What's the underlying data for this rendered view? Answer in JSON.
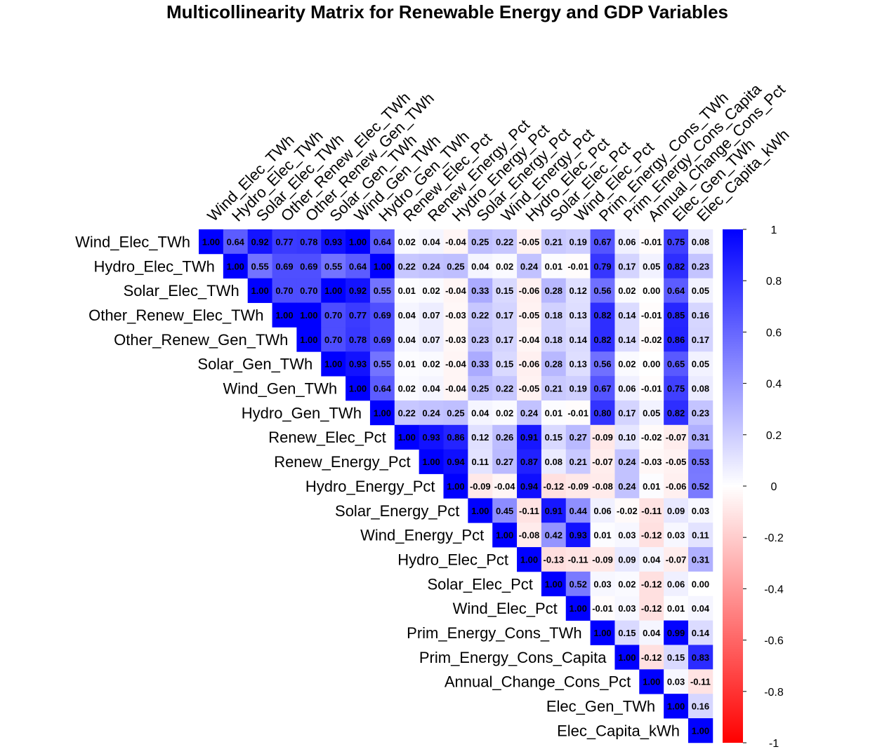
{
  "chart_data": {
    "type": "heatmap",
    "title": "Multicollinearity Matrix for Renewable Energy and GDP Variables",
    "layout": "upper-triangle",
    "variables": [
      "Wind_Elec_TWh",
      "Hydro_Elec_TWh",
      "Solar_Elec_TWh",
      "Other_Renew_Elec_TWh",
      "Other_Renew_Gen_TWh",
      "Solar_Gen_TWh",
      "Wind_Gen_TWh",
      "Hydro_Gen_TWh",
      "Renew_Elec_Pct",
      "Renew_Energy_Pct",
      "Hydro_Energy_Pct",
      "Solar_Energy_Pct",
      "Wind_Energy_Pct",
      "Hydro_Elec_Pct",
      "Solar_Elec_Pct",
      "Wind_Elec_Pct",
      "Prim_Energy_Cons_TWh",
      "Prim_Energy_Cons_Capita",
      "Annual_Change_Cons_Pct",
      "Elec_Gen_TWh",
      "Elec_Capita_kWh"
    ],
    "value_labels": [
      [
        "1.00",
        "0.64",
        "0.92",
        "0.77",
        "0.78",
        "0.93",
        "1.00",
        "0.64",
        "0.02",
        "0.04",
        "-0.04",
        "0.25",
        "0.22",
        "-0.05",
        "0.21",
        "0.19",
        "0.67",
        "0.06",
        "-0.01",
        "0.75",
        "0.08"
      ],
      [
        "1.00",
        "0.55",
        "0.69",
        "0.69",
        "0.55",
        "0.64",
        "1.00",
        "0.22",
        "0.24",
        "0.25",
        "0.04",
        "0.02",
        "0.24",
        "0.01",
        "-0.01",
        "0.79",
        "0.17",
        "0.05",
        "0.82",
        "0.23"
      ],
      [
        "1.00",
        "0.70",
        "0.70",
        "1.00",
        "0.92",
        "0.55",
        "0.01",
        "0.02",
        "-0.04",
        "0.33",
        "0.15",
        "-0.06",
        "0.28",
        "0.12",
        "0.56",
        "0.02",
        "0.00",
        "0.64",
        "0.05"
      ],
      [
        "1.00",
        "1.00",
        "0.70",
        "0.77",
        "0.69",
        "0.04",
        "0.07",
        "-0.03",
        "0.22",
        "0.17",
        "-0.05",
        "0.18",
        "0.13",
        "0.82",
        "0.14",
        "-0.01",
        "0.85",
        "0.16"
      ],
      [
        "1.00",
        "0.70",
        "0.78",
        "0.69",
        "0.04",
        "0.07",
        "-0.03",
        "0.23",
        "0.17",
        "-0.04",
        "0.18",
        "0.14",
        "0.82",
        "0.14",
        "-0.02",
        "0.86",
        "0.17"
      ],
      [
        "1.00",
        "0.93",
        "0.55",
        "0.01",
        "0.02",
        "-0.04",
        "0.33",
        "0.15",
        "-0.06",
        "0.28",
        "0.13",
        "0.56",
        "0.02",
        "0.00",
        "0.65",
        "0.05"
      ],
      [
        "1.00",
        "0.64",
        "0.02",
        "0.04",
        "-0.04",
        "0.25",
        "0.22",
        "-0.05",
        "0.21",
        "0.19",
        "0.67",
        "0.06",
        "-0.01",
        "0.75",
        "0.08"
      ],
      [
        "1.00",
        "0.22",
        "0.24",
        "0.25",
        "0.04",
        "0.02",
        "0.24",
        "0.01",
        "-0.01",
        "0.80",
        "0.17",
        "0.05",
        "0.82",
        "0.23"
      ],
      [
        "1.00",
        "0.93",
        "0.86",
        "0.12",
        "0.26",
        "0.91",
        "0.15",
        "0.27",
        "-0.09",
        "0.10",
        "-0.02",
        "-0.07",
        "0.31"
      ],
      [
        "1.00",
        "0.94",
        "0.11",
        "0.27",
        "0.87",
        "0.08",
        "0.21",
        "-0.07",
        "0.24",
        "-0.03",
        "-0.05",
        "0.53"
      ],
      [
        "1.00",
        "-0.09",
        "-0.04",
        "0.94",
        "-0.12",
        "-0.09",
        "-0.08",
        "0.24",
        "0.01",
        "-0.06",
        "0.52"
      ],
      [
        "1.00",
        "0.45",
        "-0.11",
        "0.91",
        "0.44",
        "0.06",
        "-0.02",
        "-0.11",
        "0.09",
        "0.03"
      ],
      [
        "1.00",
        "-0.08",
        "0.42",
        "0.93",
        "0.01",
        "0.03",
        "-0.12",
        "0.03",
        "0.11"
      ],
      [
        "1.00",
        "-0.13",
        "-0.11",
        "-0.09",
        "0.09",
        "0.04",
        "-0.07",
        "0.31"
      ],
      [
        "1.00",
        "0.52",
        "0.03",
        "0.02",
        "-0.12",
        "0.06",
        "0.00"
      ],
      [
        "1.00",
        "-0.01",
        "0.03",
        "-0.12",
        "0.01",
        "0.04"
      ],
      [
        "1.00",
        "0.15",
        "0.04",
        "0.99",
        "0.14"
      ],
      [
        "1.00",
        "-0.12",
        "0.15",
        "0.83"
      ],
      [
        "1.00",
        "0.03",
        "-0.11"
      ],
      [
        "1.00",
        "0.16"
      ],
      [
        "1.00"
      ]
    ],
    "color_scale": {
      "min": -1,
      "max": 1,
      "low_color": "#FF0000",
      "mid_color": "#FFFFFF",
      "high_color": "#0000FF",
      "tick_labels": [
        "1",
        "0.8",
        "0.6",
        "0.4",
        "0.2",
        "0",
        "-0.2",
        "-0.4",
        "-0.6",
        "-0.8",
        "-1"
      ]
    }
  }
}
